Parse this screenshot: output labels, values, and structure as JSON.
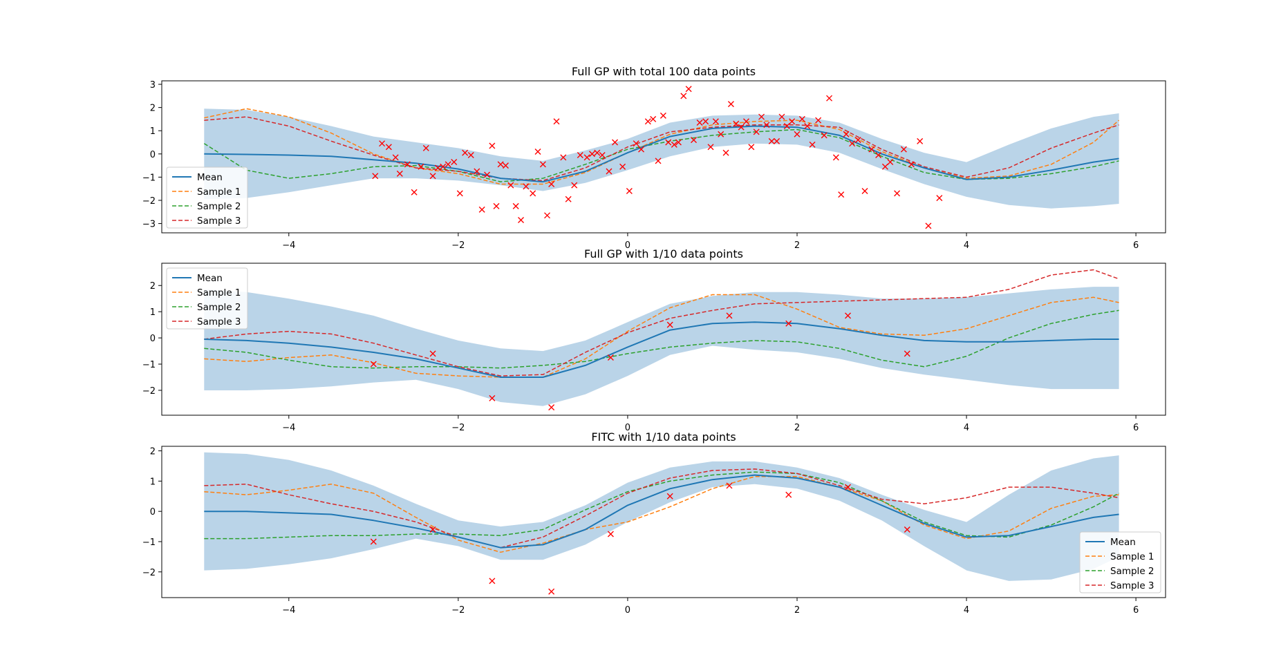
{
  "chart_data": [
    {
      "type": "line",
      "title": "Full GP with total 100 data points",
      "xlabel": "",
      "ylabel": "",
      "xlim": [
        -5.5,
        6.35
      ],
      "ylim": [
        -3.4,
        3.15
      ],
      "xticks": [
        -4,
        -2,
        0,
        2,
        4,
        6
      ],
      "yticks": [
        -3,
        -2,
        -1,
        0,
        1,
        2,
        3
      ],
      "grid": false,
      "legend_position": "lower-left",
      "x": [
        -5.0,
        -4.5,
        -4.0,
        -3.5,
        -3.0,
        -2.5,
        -2.0,
        -1.5,
        -1.0,
        -0.5,
        0.0,
        0.5,
        1.0,
        1.5,
        2.0,
        2.5,
        3.0,
        3.5,
        4.0,
        4.5,
        5.0,
        5.5,
        5.8
      ],
      "band": {
        "upper": [
          1.95,
          1.9,
          1.6,
          1.2,
          0.75,
          0.5,
          0.25,
          -0.1,
          -0.3,
          0.15,
          0.65,
          1.35,
          1.65,
          1.7,
          1.65,
          1.35,
          0.65,
          0.05,
          -0.35,
          0.4,
          1.1,
          1.6,
          1.75
        ],
        "lower": [
          -1.95,
          -1.9,
          -1.65,
          -1.35,
          -1.05,
          -1.05,
          -1.15,
          -1.35,
          -1.6,
          -1.25,
          -0.7,
          -0.1,
          0.3,
          0.45,
          0.4,
          0.05,
          -0.65,
          -1.3,
          -1.85,
          -2.2,
          -2.35,
          -2.25,
          -2.15
        ]
      },
      "series": [
        {
          "name": "Mean",
          "style": "solid",
          "values": [
            0.0,
            -0.02,
            -0.05,
            -0.1,
            -0.25,
            -0.4,
            -0.65,
            -1.05,
            -1.2,
            -0.75,
            0.05,
            0.75,
            1.1,
            1.2,
            1.15,
            0.8,
            0.0,
            -0.6,
            -1.1,
            -1.0,
            -0.7,
            -0.35,
            -0.2
          ]
        },
        {
          "name": "Sample 1",
          "style": "dashed",
          "values": [
            1.55,
            1.95,
            1.6,
            0.9,
            0.0,
            -0.6,
            -0.85,
            -1.3,
            -1.3,
            -0.8,
            0.05,
            0.85,
            1.25,
            1.4,
            1.45,
            1.05,
            0.1,
            -0.6,
            -1.05,
            -0.95,
            -0.45,
            0.5,
            1.45
          ]
        },
        {
          "name": "Sample 2",
          "style": "dashed",
          "values": [
            0.45,
            -0.7,
            -1.05,
            -0.85,
            -0.55,
            -0.5,
            -0.75,
            -1.2,
            -1.05,
            -0.45,
            0.2,
            0.55,
            0.8,
            0.95,
            1.05,
            0.7,
            -0.1,
            -0.8,
            -1.1,
            -1.05,
            -0.85,
            -0.55,
            -0.3
          ]
        },
        {
          "name": "Sample 3",
          "style": "dashed",
          "values": [
            1.45,
            1.6,
            1.2,
            0.55,
            -0.05,
            -0.6,
            -0.75,
            -1.05,
            -1.15,
            -0.6,
            0.3,
            0.95,
            1.15,
            1.25,
            1.25,
            1.15,
            0.2,
            -0.55,
            -1.0,
            -0.6,
            0.25,
            0.9,
            1.25
          ]
        }
      ],
      "points": {
        "x": [
          -2.98,
          -2.9,
          -2.82,
          -2.74,
          -2.69,
          -2.6,
          -2.52,
          -2.44,
          -2.38,
          -2.3,
          -2.24,
          -2.18,
          -2.12,
          -2.05,
          -1.98,
          -1.92,
          -1.85,
          -1.78,
          -1.72,
          -1.66,
          -1.6,
          -1.55,
          -1.5,
          -1.44,
          -1.38,
          -1.32,
          -1.26,
          -1.2,
          -1.12,
          -1.06,
          -1.0,
          -0.95,
          -0.9,
          -0.84,
          -0.76,
          -0.7,
          -0.63,
          -0.56,
          -0.48,
          -0.42,
          -0.36,
          -0.3,
          -0.22,
          -0.15,
          -0.06,
          0.02,
          0.1,
          0.16,
          0.24,
          0.3,
          0.36,
          0.42,
          0.48,
          0.55,
          0.6,
          0.66,
          0.72,
          0.78,
          0.85,
          0.92,
          0.98,
          1.04,
          1.1,
          1.16,
          1.22,
          1.28,
          1.34,
          1.4,
          1.46,
          1.52,
          1.58,
          1.64,
          1.7,
          1.76,
          1.82,
          1.88,
          1.94,
          2.0,
          2.06,
          2.12,
          2.18,
          2.25,
          2.32,
          2.38,
          2.46,
          2.52,
          2.58,
          2.65,
          2.72,
          2.8,
          2.88,
          2.96,
          3.04,
          3.1,
          3.18,
          3.26,
          3.35,
          3.45,
          3.55,
          3.68
        ],
        "y": [
          -0.95,
          0.45,
          0.3,
          -0.15,
          -0.85,
          -0.45,
          -1.65,
          -0.55,
          0.25,
          -0.95,
          -0.6,
          -0.55,
          -0.45,
          -0.35,
          -1.7,
          0.05,
          -0.05,
          -0.75,
          -2.4,
          -0.9,
          0.35,
          -2.25,
          -0.45,
          -0.5,
          -1.35,
          -2.25,
          -2.85,
          -1.4,
          -1.7,
          0.1,
          -0.45,
          -2.65,
          -1.3,
          1.4,
          -0.15,
          -1.95,
          -1.35,
          -0.05,
          -0.15,
          0.0,
          0.05,
          -0.05,
          -0.75,
          0.5,
          -0.55,
          -1.6,
          0.45,
          0.2,
          1.4,
          1.5,
          -0.3,
          1.65,
          0.5,
          0.4,
          0.5,
          2.5,
          2.8,
          0.6,
          1.35,
          1.4,
          0.3,
          1.4,
          0.85,
          0.05,
          2.15,
          1.3,
          1.15,
          1.4,
          0.3,
          0.95,
          1.6,
          1.25,
          0.55,
          0.55,
          1.6,
          1.2,
          1.4,
          0.85,
          1.5,
          1.2,
          0.4,
          1.45,
          0.8,
          2.4,
          -0.15,
          -1.75,
          0.85,
          0.45,
          0.6,
          -1.6,
          0.2,
          -0.05,
          -0.55,
          -0.35,
          -1.7,
          0.2,
          -0.45,
          0.55,
          -3.1,
          -1.9
        ]
      }
    },
    {
      "type": "line",
      "title": "Full GP with 1/10 data points",
      "xlabel": "",
      "ylabel": "",
      "xlim": [
        -5.5,
        6.35
      ],
      "ylim": [
        -2.95,
        2.85
      ],
      "xticks": [
        -4,
        -2,
        0,
        2,
        4,
        6
      ],
      "yticks": [
        -2,
        -1,
        0,
        1,
        2
      ],
      "grid": false,
      "legend_position": "upper-left",
      "x": [
        -5.0,
        -4.5,
        -4.0,
        -3.5,
        -3.0,
        -2.5,
        -2.0,
        -1.5,
        -1.0,
        -0.5,
        0.0,
        0.5,
        1.0,
        1.5,
        2.0,
        2.5,
        3.0,
        3.5,
        4.0,
        4.5,
        5.0,
        5.5,
        5.8
      ],
      "band": {
        "upper": [
          1.85,
          1.75,
          1.5,
          1.2,
          0.85,
          0.35,
          -0.1,
          -0.4,
          -0.5,
          -0.1,
          0.6,
          1.3,
          1.6,
          1.75,
          1.75,
          1.65,
          1.5,
          1.5,
          1.55,
          1.7,
          1.85,
          1.95,
          1.95
        ],
        "lower": [
          -2.0,
          -2.0,
          -1.95,
          -1.85,
          -1.7,
          -1.6,
          -1.95,
          -2.45,
          -2.6,
          -2.15,
          -1.45,
          -0.65,
          -0.3,
          -0.45,
          -0.55,
          -0.8,
          -1.15,
          -1.4,
          -1.6,
          -1.8,
          -1.95,
          -1.95,
          -1.95
        ]
      },
      "series": [
        {
          "name": "Mean",
          "style": "solid",
          "values": [
            -0.05,
            -0.1,
            -0.2,
            -0.35,
            -0.55,
            -0.8,
            -1.15,
            -1.5,
            -1.5,
            -1.05,
            -0.35,
            0.3,
            0.55,
            0.6,
            0.55,
            0.35,
            0.1,
            -0.1,
            -0.15,
            -0.15,
            -0.1,
            -0.05,
            -0.05
          ]
        },
        {
          "name": "Sample 1",
          "style": "dashed",
          "values": [
            -0.8,
            -0.9,
            -0.75,
            -0.65,
            -0.95,
            -1.35,
            -1.45,
            -1.5,
            -1.5,
            -0.8,
            0.25,
            1.15,
            1.65,
            1.65,
            1.1,
            0.4,
            0.15,
            0.1,
            0.35,
            0.85,
            1.35,
            1.55,
            1.35
          ]
        },
        {
          "name": "Sample 2",
          "style": "dashed",
          "values": [
            -0.4,
            -0.55,
            -0.85,
            -1.1,
            -1.15,
            -1.1,
            -1.1,
            -1.15,
            -1.05,
            -0.9,
            -0.6,
            -0.35,
            -0.2,
            -0.1,
            -0.15,
            -0.4,
            -0.85,
            -1.1,
            -0.7,
            0.0,
            0.55,
            0.9,
            1.05
          ]
        },
        {
          "name": "Sample 3",
          "style": "dashed",
          "values": [
            -0.05,
            0.15,
            0.25,
            0.15,
            -0.2,
            -0.65,
            -1.1,
            -1.45,
            -1.4,
            -0.55,
            0.2,
            0.75,
            1.05,
            1.3,
            1.35,
            1.4,
            1.45,
            1.5,
            1.55,
            1.85,
            2.4,
            2.6,
            2.25
          ]
        }
      ],
      "points": {
        "x": [
          -3.0,
          -2.3,
          -1.6,
          -0.9,
          -0.2,
          0.5,
          1.2,
          1.9,
          2.6,
          3.3
        ],
        "y": [
          -1.0,
          -0.6,
          -2.3,
          -2.65,
          -0.75,
          0.5,
          0.85,
          0.55,
          0.85,
          -0.6
        ]
      }
    },
    {
      "type": "line",
      "title": "FITC with 1/10 data points",
      "xlabel": "",
      "ylabel": "",
      "xlim": [
        -5.5,
        6.35
      ],
      "ylim": [
        -2.85,
        2.15
      ],
      "xticks": [
        -4,
        -2,
        0,
        2,
        4,
        6
      ],
      "yticks": [
        -2,
        -1,
        0,
        1,
        2
      ],
      "grid": false,
      "legend_position": "lower-right",
      "x": [
        -5.0,
        -4.5,
        -4.0,
        -3.5,
        -3.0,
        -2.5,
        -2.0,
        -1.5,
        -1.0,
        -0.5,
        0.0,
        0.5,
        1.0,
        1.5,
        2.0,
        2.5,
        3.0,
        3.5,
        4.0,
        4.5,
        5.0,
        5.5,
        5.8
      ],
      "band": {
        "upper": [
          1.95,
          1.9,
          1.7,
          1.35,
          0.85,
          0.25,
          -0.3,
          -0.5,
          -0.35,
          0.2,
          0.95,
          1.45,
          1.65,
          1.65,
          1.45,
          1.1,
          0.55,
          0.05,
          -0.35,
          0.55,
          1.35,
          1.75,
          1.85
        ],
        "lower": [
          -1.95,
          -1.9,
          -1.75,
          -1.55,
          -1.25,
          -0.9,
          -1.15,
          -1.6,
          -1.6,
          -1.1,
          -0.35,
          0.3,
          0.8,
          0.9,
          0.75,
          0.35,
          -0.3,
          -1.15,
          -1.95,
          -2.3,
          -2.25,
          -1.9,
          -1.5
        ]
      },
      "series": [
        {
          "name": "Mean",
          "style": "solid",
          "values": [
            0.0,
            0.0,
            -0.05,
            -0.1,
            -0.3,
            -0.55,
            -0.85,
            -1.2,
            -1.1,
            -0.6,
            0.2,
            0.75,
            1.05,
            1.2,
            1.1,
            0.8,
            0.2,
            -0.4,
            -0.85,
            -0.8,
            -0.5,
            -0.2,
            -0.1
          ]
        },
        {
          "name": "Sample 1",
          "style": "dashed",
          "values": [
            0.65,
            0.55,
            0.7,
            0.9,
            0.6,
            -0.2,
            -0.95,
            -1.35,
            -1.05,
            -0.6,
            -0.35,
            0.15,
            0.75,
            1.15,
            1.15,
            0.8,
            0.35,
            -0.45,
            -0.9,
            -0.65,
            0.1,
            0.5,
            0.55
          ]
        },
        {
          "name": "Sample 2",
          "style": "dashed",
          "values": [
            -0.9,
            -0.9,
            -0.85,
            -0.8,
            -0.8,
            -0.75,
            -0.75,
            -0.8,
            -0.6,
            0.05,
            0.65,
            1.0,
            1.2,
            1.3,
            1.25,
            0.95,
            0.35,
            -0.35,
            -0.8,
            -0.85,
            -0.45,
            0.15,
            0.6
          ]
        },
        {
          "name": "Sample 3",
          "style": "dashed",
          "values": [
            0.85,
            0.9,
            0.55,
            0.25,
            0.0,
            -0.35,
            -0.85,
            -1.2,
            -0.85,
            -0.15,
            0.6,
            1.1,
            1.35,
            1.4,
            1.25,
            0.85,
            0.4,
            0.25,
            0.45,
            0.8,
            0.8,
            0.6,
            0.45
          ]
        }
      ],
      "points": {
        "x": [
          -3.0,
          -2.3,
          -1.6,
          -0.9,
          -0.2,
          0.5,
          1.2,
          1.9,
          2.6,
          3.3
        ],
        "y": [
          -1.0,
          -0.6,
          -2.3,
          -2.65,
          -0.75,
          0.5,
          0.85,
          0.55,
          0.8,
          -0.6
        ]
      }
    }
  ],
  "colors": {
    "mean": "#1f77b4",
    "sample1": "#ff7f0e",
    "sample2": "#2ca02c",
    "sample3": "#d62728",
    "band": "#bad4e8",
    "points": "#ff0000"
  }
}
